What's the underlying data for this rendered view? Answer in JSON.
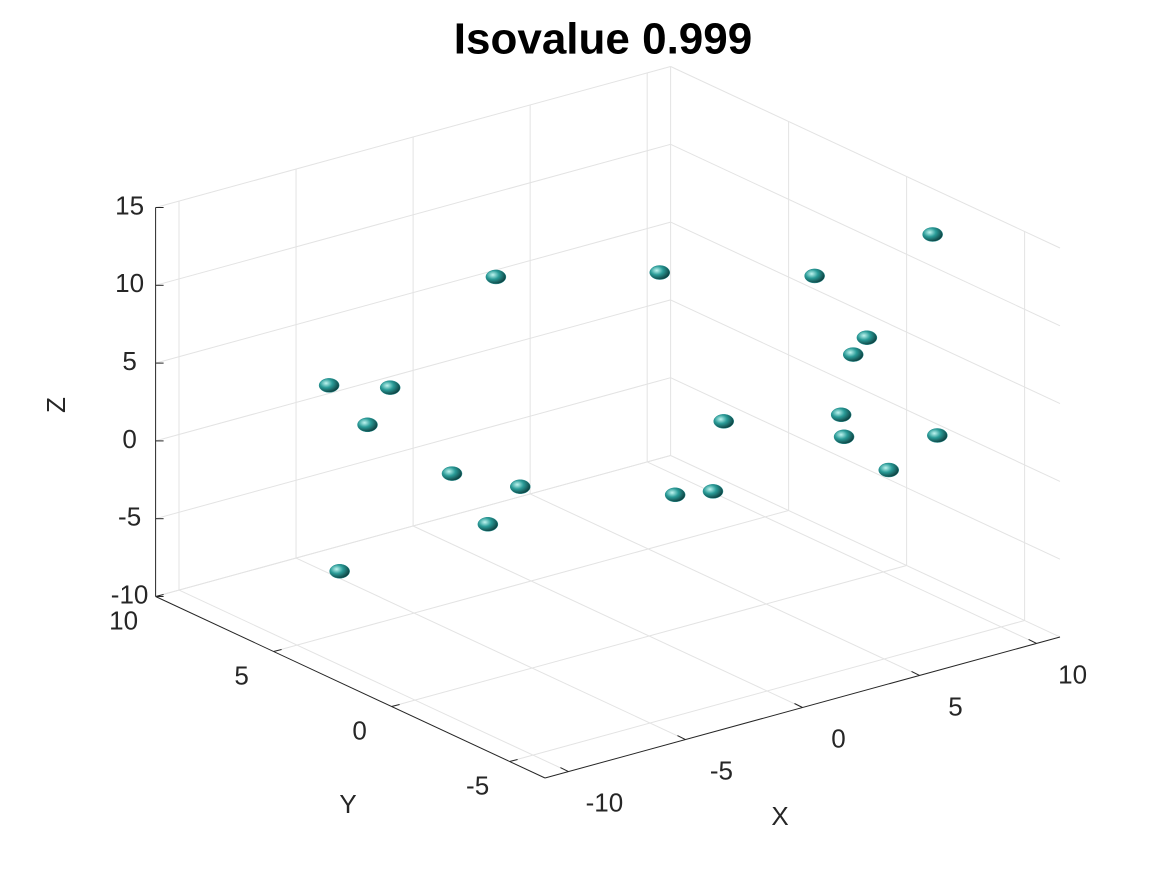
{
  "chart_data": {
    "type": "scatter3",
    "title": "Isovalue 0.999",
    "xlabel": "X",
    "ylabel": "Y",
    "zlabel": "Z",
    "x": [
      -1,
      6,
      10.6,
      10.6,
      8.8,
      6.2,
      -5.1,
      -3.5,
      -8.5,
      4.7,
      7.7,
      4.8,
      10.8,
      -5.9,
      -5,
      -0.4,
      -0.8,
      5.7,
      -8.4,
      -10.7
    ],
    "y": [
      5.5,
      5.5,
      3.5,
      -1.5,
      -0.5,
      -2.5,
      8.5,
      7.5,
      3.5,
      1.5,
      -0.5,
      -3.5,
      -1.5,
      2.5,
      0.5,
      -1.5,
      -3.5,
      -4.5,
      -1.5,
      2.5
    ],
    "z": [
      9.6,
      7,
      6.3,
      12.5,
      5.9,
      7.3,
      2.2,
      2.1,
      4.6,
      0.8,
      1.4,
      3.3,
      -0.5,
      1.1,
      1.3,
      0.3,
      2.1,
      1.5,
      1.7,
      -3.2
    ],
    "color": "#1f8c8c",
    "xlim": [
      -11,
      11
    ],
    "ylim": [
      -6.5,
      10
    ],
    "zlim": [
      -10,
      15
    ],
    "xticks": [
      -10,
      -5,
      0,
      5,
      10
    ],
    "yticks": [
      -5,
      0,
      5,
      10
    ],
    "zticks": [
      -10,
      -5,
      0,
      5,
      10,
      15
    ],
    "grid": true
  }
}
